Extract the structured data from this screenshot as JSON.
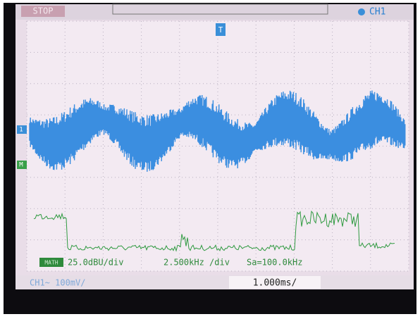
{
  "status": {
    "run_state": "STOP",
    "trigger_source": "CH1"
  },
  "markers": {
    "trigger": "T",
    "channel": "1",
    "math": "M"
  },
  "math_readout": {
    "label": "MATH",
    "scale": "25.0dBU/div",
    "span": "2.500kHz /div",
    "sample_rate": "Sa=100.0kHz"
  },
  "footer": {
    "channel_scale": "CH1~ 100mV/",
    "timebase": "1.000ms/"
  }
}
